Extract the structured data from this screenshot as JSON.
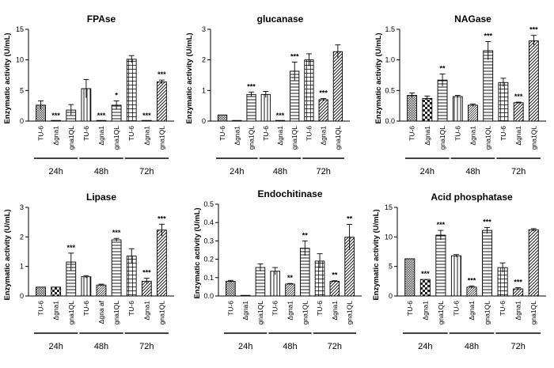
{
  "chart_data": [
    {
      "type": "bar",
      "title": "FPAse",
      "ylabel": "Enzymatic activity (U/mL)",
      "ylim": [
        0,
        15
      ],
      "yticks": [
        "0",
        "5",
        "10",
        "15"
      ],
      "categories": [
        "TU-6",
        "Δgna1",
        "gna1QL",
        "TU-6",
        "Δgna1",
        "gna1QL",
        "TU-6",
        "Δgna1",
        "gna1QL"
      ],
      "time_groups": [
        "24h",
        "48h",
        "72h"
      ],
      "values": [
        2.6,
        0,
        1.8,
        5.3,
        0,
        2.6,
        10.1,
        0,
        6.4
      ],
      "errors": [
        0.7,
        0,
        0.9,
        1.5,
        0,
        0.7,
        0.6,
        0,
        0.3
      ],
      "significance": [
        "",
        "***",
        "",
        "",
        "***",
        "*",
        "",
        "***",
        "***"
      ]
    },
    {
      "type": "bar",
      "title": "glucanase",
      "ylabel": "Enzymatic activity (U/mL)",
      "ylim": [
        0,
        3
      ],
      "yticks": [
        "0",
        "1",
        "2",
        "3"
      ],
      "categories": [
        "TU-6",
        "Δgna1",
        "gna1QL",
        "TU-6",
        "Δgna1",
        "gna1QL",
        "TU-6",
        "Δgna1",
        "gna1QL"
      ],
      "time_groups": [
        "24h",
        "48h",
        "72h"
      ],
      "values": [
        0.2,
        0,
        0.87,
        0.87,
        0,
        1.63,
        2.0,
        0.7,
        2.27
      ],
      "errors": [
        0,
        0,
        0.08,
        0.1,
        0,
        0.3,
        0.2,
        0.04,
        0.22
      ],
      "significance": [
        "",
        "",
        "***",
        "",
        "***",
        "***",
        "",
        "***",
        ""
      ]
    },
    {
      "type": "bar",
      "title": "NAGase",
      "ylabel": "Enzymatic activity (U/mL)",
      "ylim": [
        0,
        1.5
      ],
      "yticks": [
        "0.0",
        "0.5",
        "1.0",
        "1.5"
      ],
      "categories": [
        "TU-6",
        "Δgna1",
        "gna1QL",
        "TU-6",
        "Δgna1",
        "gna1QL",
        "TU-6",
        "Δgna1",
        "gna1QL"
      ],
      "time_groups": [
        "24h",
        "48h",
        "72h"
      ],
      "values": [
        0.42,
        0.37,
        0.67,
        0.4,
        0.26,
        1.15,
        0.63,
        0.3,
        1.31
      ],
      "errors": [
        0.04,
        0.04,
        0.1,
        0.02,
        0.02,
        0.15,
        0.07,
        0.01,
        0.09
      ],
      "significance": [
        "",
        "",
        "**",
        "",
        "",
        "***",
        "",
        "***",
        "***"
      ]
    },
    {
      "type": "bar",
      "title": "Lipase",
      "ylabel": "Enzymatic activity (U/mL)",
      "ylim": [
        0,
        3
      ],
      "yticks": [
        "0",
        "1",
        "2",
        "3"
      ],
      "categories": [
        "TU-6",
        "Δgna1",
        "gna1QL",
        "TU-6",
        "Δgna af",
        "gna1QL",
        "TU-6",
        "Δgna1",
        "gna1QL"
      ],
      "time_groups": [
        "24h",
        "48h",
        "72h"
      ],
      "values": [
        0.3,
        0.3,
        1.15,
        0.65,
        0.37,
        1.9,
        1.35,
        0.5,
        2.23
      ],
      "errors": [
        0,
        0,
        0.3,
        0.04,
        0.03,
        0.05,
        0.25,
        0.1,
        0.2
      ],
      "significance": [
        "",
        "",
        "***",
        "",
        "",
        "***",
        "",
        "***",
        "***"
      ]
    },
    {
      "type": "bar",
      "title": "Endochitinase",
      "ylabel": "Enzymatic activity (U/mL)",
      "ylim": [
        0,
        0.5
      ],
      "yticks": [
        "0.0",
        "0.1",
        "0.2",
        "0.3",
        "0.4",
        "0.5"
      ],
      "categories": [
        "TU-6",
        "Δgna1",
        "gna1QL",
        "TU-6",
        "Δgna1",
        "gna1QL",
        "TU-6",
        "Δgna1",
        "gna1QL"
      ],
      "time_groups": [
        "24h",
        "48h",
        "72h"
      ],
      "values": [
        0.08,
        0.003,
        0.155,
        0.135,
        0.065,
        0.26,
        0.19,
        0.08,
        0.32
      ],
      "errors": [
        0.005,
        0,
        0.02,
        0.02,
        0.003,
        0.04,
        0.04,
        0.003,
        0.07
      ],
      "significance": [
        "",
        "",
        "",
        "",
        "**",
        "**",
        "",
        "**",
        "**"
      ]
    },
    {
      "type": "bar",
      "title": "Acid phosphatase",
      "ylabel": "Enzymatic activity (U/mL)",
      "ylim": [
        0,
        15
      ],
      "yticks": [
        "0",
        "5",
        "10",
        "15"
      ],
      "categories": [
        "TU-6",
        "Δgna1",
        "gna1QL",
        "TU-6",
        "Δgna1",
        "gna1QL",
        "TU-6",
        "Δgna1",
        "gna1QL"
      ],
      "time_groups": [
        "24h",
        "48h",
        "72h"
      ],
      "values": [
        6.3,
        2.8,
        10.3,
        6.8,
        1.5,
        11.1,
        4.8,
        1.2,
        11.2
      ],
      "errors": [
        0,
        0,
        0.8,
        0.2,
        0.2,
        0.5,
        0.8,
        0.2,
        0.2
      ],
      "significance": [
        "",
        "***",
        "***",
        "",
        "***",
        "***",
        "",
        "***",
        ""
      ]
    }
  ]
}
